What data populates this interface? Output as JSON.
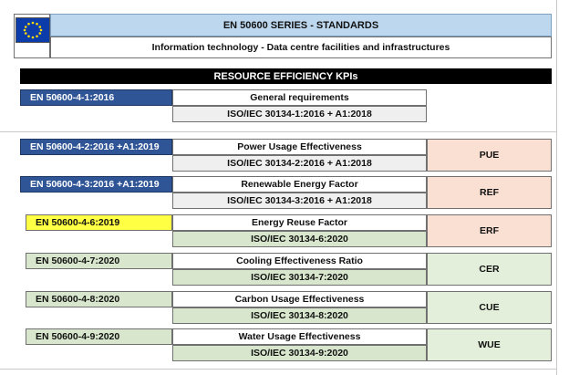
{
  "header": {
    "series_title": "EN 50600 SERIES - STANDARDS",
    "subtitle": "Information technology - Data centre facilities and infrastructures",
    "flag_icon": "eu-flag-icon"
  },
  "section_title": "RESOURCE EFFICIENCY KPIs",
  "colors": {
    "blue": "#2f5597",
    "light_blue": "#bdd7ee",
    "grey": "#efefef",
    "green": "#d7e6cc",
    "yellow": "#ffff44",
    "peach": "#f9e0d2",
    "kpi_green": "#e3efdb"
  },
  "rows": [
    {
      "en": "EN 50600-4-1:2016",
      "name": "General requirements",
      "iso": "ISO/IEC 30134-1:2016 + A1:2018",
      "kpi": ""
    },
    {
      "en": "EN 50600-4-2:2016 +A1:2019",
      "name": "Power Usage Effectiveness",
      "iso": "ISO/IEC 30134-2:2016 + A1:2018",
      "kpi": "PUE"
    },
    {
      "en": "EN 50600-4-3:2016 +A1:2019",
      "name": "Renewable Energy Factor",
      "iso": "ISO/IEC 30134-3:2016 + A1:2018",
      "kpi": "REF"
    },
    {
      "en": "EN 50600-4-6:2019",
      "name": "Energy Reuse Factor",
      "iso": "ISO/IEC 30134-6:2020",
      "kpi": "ERF"
    },
    {
      "en": "EN 50600-4-7:2020",
      "name": "Cooling Effectiveness Ratio",
      "iso": "ISO/IEC 30134-7:2020",
      "kpi": "CER"
    },
    {
      "en": "EN 50600-4-8:2020",
      "name": "Carbon Usage Effectiveness",
      "iso": "ISO/IEC 30134-8:2020",
      "kpi": "CUE"
    },
    {
      "en": "EN 50600-4-9:2020",
      "name": "Water Usage Effectiveness",
      "iso": "ISO/IEC 30134-9:2020",
      "kpi": "WUE"
    }
  ]
}
